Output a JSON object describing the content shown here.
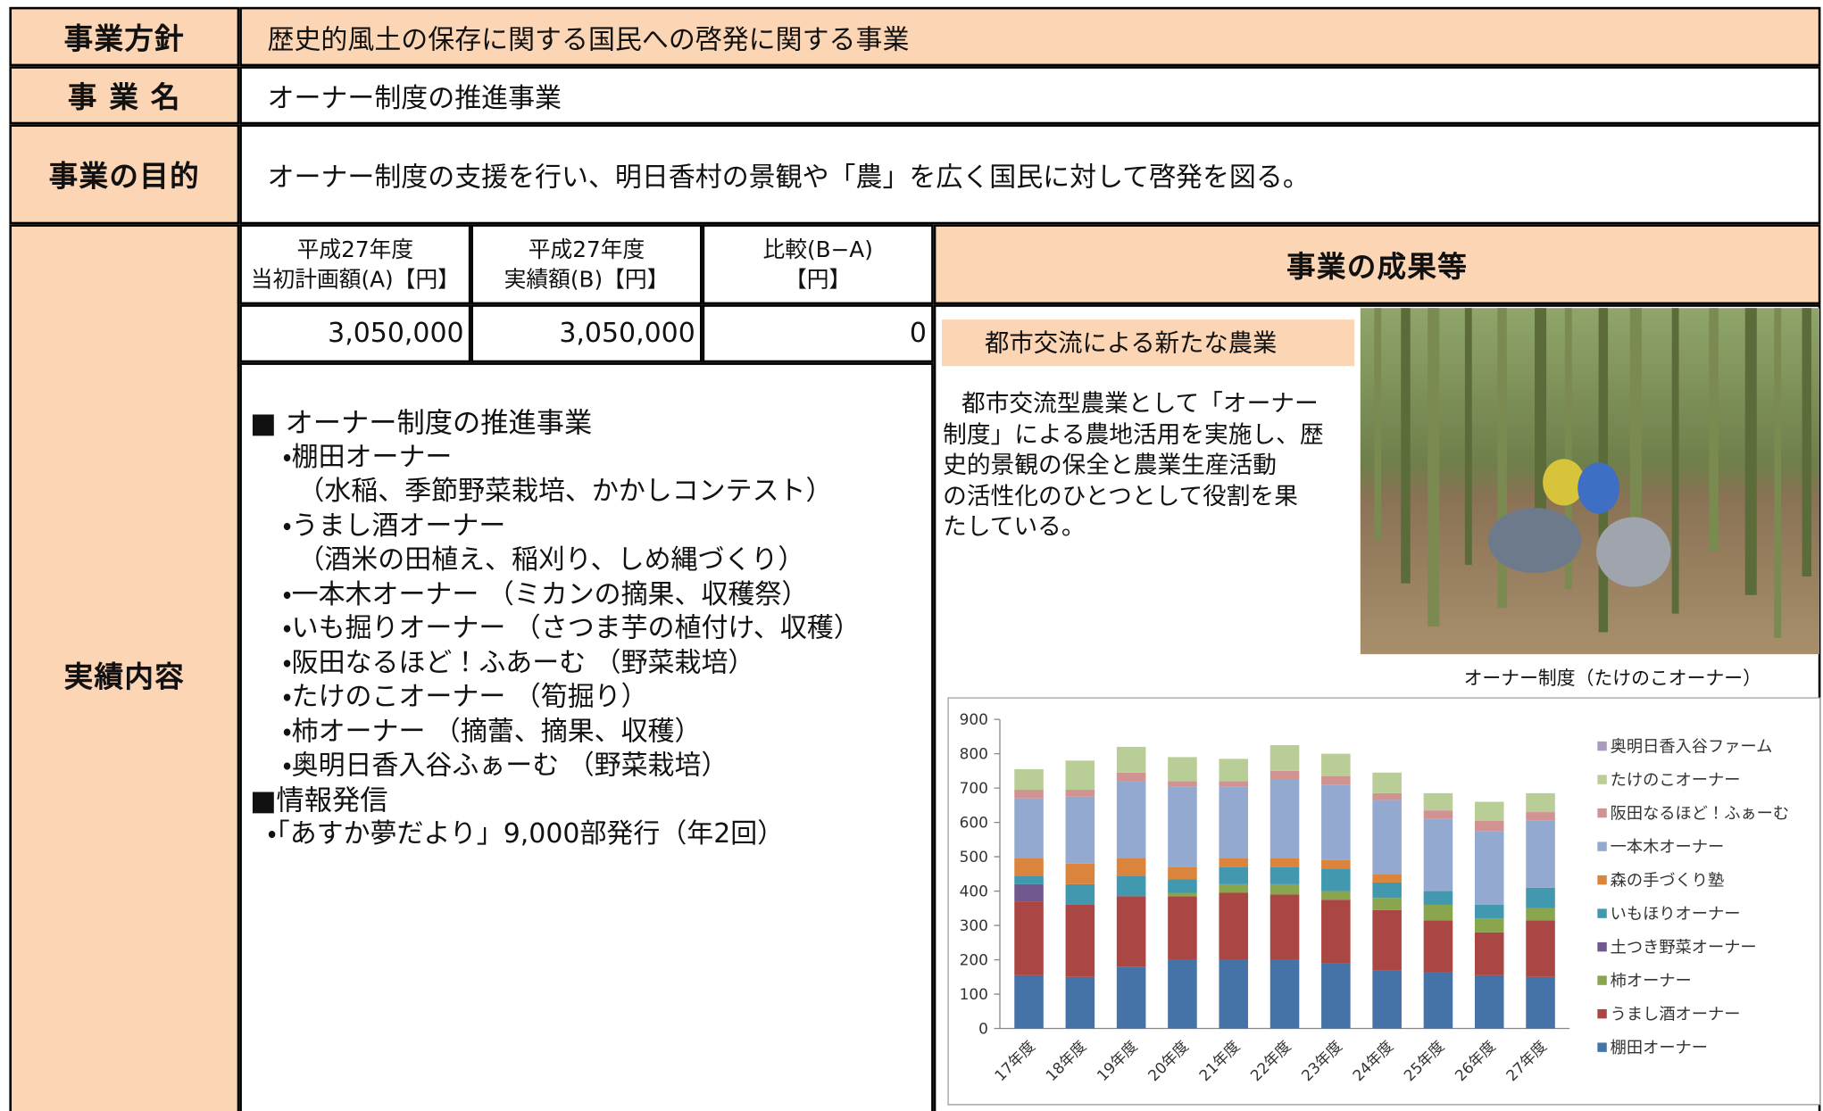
{
  "form": {
    "rows": [
      {
        "label": "事業方針",
        "value": "歴史的風土の保存に関する国民への啓発に関する事業"
      },
      {
        "label": "事 業 名",
        "value": "オーナー制度の推進事業"
      },
      {
        "label": "事業の目的",
        "value": "オーナー制度の支援を行い、明日香村の景観や「農」を広く国民に対して啓発を図る。"
      }
    ],
    "results_label": "実績内容"
  },
  "budget": {
    "headers": [
      [
        "平成27年度",
        "当初計画額(A)【円】"
      ],
      [
        "平成27年度",
        "実績額(B)【円】"
      ],
      [
        "比較(B−A)",
        "【円】"
      ]
    ],
    "values": [
      "3,050,000",
      "3,050,000",
      "0"
    ]
  },
  "details": {
    "sections": [
      {
        "heading": "■ オーナー制度の推進事業",
        "lines": [
          "・棚田オーナー",
          "（水稲、季節野菜栽培、かかしコンテスト）",
          "・うまし酒オーナー",
          "（酒米の田植え、稲刈り、しめ縄づくり）",
          "・一本木オーナー （ミカンの摘果、収穫祭）",
          "・いも掘りオーナー （さつま芋の植付け、収穫）",
          "・阪田なるほど！ふあーむ （野菜栽培）",
          "・たけのこオーナー （筍掘り）",
          "・柿オーナー （摘蕾、摘果、収穫）",
          "・奥明日香入谷ふぁーむ （野菜栽培）"
        ]
      },
      {
        "heading": "■情報発信",
        "lines": [
          "・「あすか夢だより」9,000部発行（年2回）"
        ]
      }
    ]
  },
  "outcomes": {
    "title": "事業の成果等",
    "subtitle": "都市交流による新たな農業",
    "text_lines": [
      "都市交流型農業として「オーナー",
      "制度」による農地活用を実施し、歴",
      "史的景観の保全と農業生産活動",
      "の活性化のひとつとして役割を果",
      "たしている。"
    ],
    "photo_caption": "オーナー制度（たけのこオーナー）"
  },
  "chart_data": {
    "type": "stacked_bar",
    "categories": [
      "17年度",
      "18年度",
      "19年度",
      "20年度",
      "21年度",
      "22年度",
      "23年度",
      "24年度",
      "25年度",
      "26年度",
      "27年度"
    ],
    "series": [
      {
        "name": "棚田オーナー",
        "color": "#4572a7",
        "values": [
          155,
          150,
          180,
          200,
          200,
          200,
          190,
          170,
          165,
          155,
          150
        ]
      },
      {
        "name": "うまし酒オーナー",
        "color": "#aa4643",
        "values": [
          215,
          210,
          205,
          185,
          195,
          190,
          185,
          175,
          150,
          125,
          165
        ]
      },
      {
        "name": "柿オーナー",
        "color": "#89a54e",
        "values": [
          0,
          0,
          0,
          10,
          25,
          30,
          25,
          35,
          45,
          40,
          35
        ]
      },
      {
        "name": "土つき野菜オーナー",
        "color": "#71588f",
        "values": [
          50,
          0,
          0,
          0,
          0,
          0,
          0,
          0,
          0,
          0,
          0
        ]
      },
      {
        "name": "いもほりオーナー",
        "color": "#4198af",
        "values": [
          25,
          60,
          60,
          40,
          50,
          50,
          65,
          45,
          40,
          40,
          60
        ]
      },
      {
        "name": "森の手づくり塾",
        "color": "#db843d",
        "values": [
          50,
          60,
          50,
          35,
          25,
          25,
          25,
          25,
          0,
          0,
          0
        ]
      },
      {
        "name": "一本木オーナー",
        "color": "#93a9cf",
        "values": [
          175,
          195,
          225,
          235,
          210,
          230,
          220,
          215,
          210,
          215,
          195
        ]
      },
      {
        "name": "阪田なるほど！ふぁーむ",
        "color": "#d19392",
        "values": [
          25,
          20,
          25,
          15,
          15,
          25,
          25,
          20,
          25,
          30,
          25
        ]
      },
      {
        "name": "たけのこオーナー",
        "color": "#b9cd96",
        "values": [
          60,
          85,
          75,
          70,
          65,
          75,
          65,
          60,
          50,
          55,
          55
        ]
      },
      {
        "name": "奥明日香入谷ファーム",
        "color": "#a99bbd",
        "values": [
          0,
          0,
          0,
          0,
          0,
          0,
          0,
          0,
          0,
          0,
          0
        ]
      }
    ],
    "ylim": [
      0,
      900
    ],
    "yticks": [
      0,
      100,
      200,
      300,
      400,
      500,
      600,
      700,
      800,
      900
    ],
    "grid": false
  }
}
